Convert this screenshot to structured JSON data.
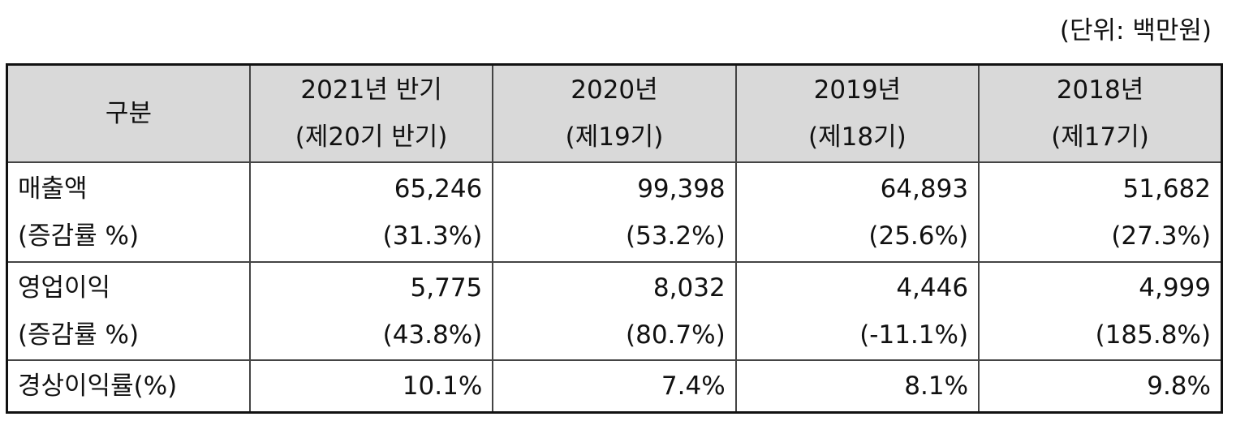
{
  "unit": "(단위: 백만원)",
  "table": {
    "header": [
      [
        "구분"
      ],
      [
        "2021년 반기",
        "(제20기 반기)"
      ],
      [
        "2020년",
        "(제19기)"
      ],
      [
        "2019년",
        "(제18기)"
      ],
      [
        "2018년",
        "(제17기)"
      ]
    ],
    "rows": [
      [
        [
          "매출액",
          "(증감률 %)"
        ],
        [
          "65,246",
          "(31.3%)"
        ],
        [
          "99,398",
          "(53.2%)"
        ],
        [
          "64,893",
          "(25.6%)"
        ],
        [
          "51,682",
          "(27.3%)"
        ]
      ],
      [
        [
          "영업이익",
          "(증감률 %)"
        ],
        [
          "5,775",
          "(43.8%)"
        ],
        [
          "8,032",
          "(80.7%)"
        ],
        [
          "4,446",
          "(-11.1%)"
        ],
        [
          "4,999",
          "(185.8%)"
        ]
      ],
      [
        [
          "경상이익률(%)"
        ],
        [
          "10.1%"
        ],
        [
          "7.4%"
        ],
        [
          "8.1%"
        ],
        [
          "9.8%"
        ]
      ]
    ]
  }
}
